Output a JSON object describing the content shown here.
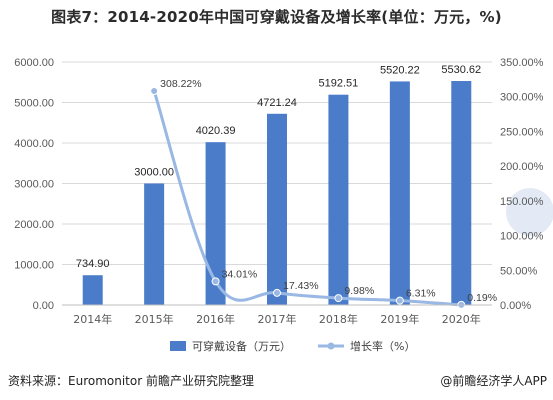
{
  "title": "图表7：2014-2020年中国可穿戴设备及增长率(单位：万元，%)",
  "footer": {
    "source": "资料来源：Euromonitor 前瞻产业研究院整理",
    "brand": "@前瞻经济学人APP"
  },
  "colors": {
    "bar": "#4a7cc9",
    "line": "#9ab8e4",
    "grid": "#d9d9d9",
    "axis_text": "#595959"
  },
  "chart_data": {
    "type": "bar",
    "categories": [
      "2014年",
      "2015年",
      "2016年",
      "2017年",
      "2018年",
      "2019年",
      "2020年"
    ],
    "series": [
      {
        "name": "可穿戴设备（万元）",
        "type": "bar",
        "axis": "left",
        "values": [
          734.9,
          3000.0,
          4020.39,
          4721.24,
          5192.51,
          5520.22,
          5530.62
        ],
        "labels": [
          "734.90",
          "3000.00",
          "4020.39",
          "4721.24",
          "5192.51",
          "5520.22",
          "5530.62"
        ]
      },
      {
        "name": "增长率（%）",
        "type": "line",
        "axis": "right",
        "values": [
          null,
          308.22,
          34.01,
          17.43,
          9.98,
          6.31,
          0.19
        ],
        "labels": [
          "",
          "308.22%",
          "34.01%",
          "17.43%",
          "9.98%",
          "6.31%",
          "0.19%"
        ]
      }
    ],
    "y_left": {
      "lim": [
        0,
        6000
      ],
      "ticks": [
        0,
        1000,
        2000,
        3000,
        4000,
        5000,
        6000
      ],
      "tick_labels": [
        "0.00",
        "1000.00",
        "2000.00",
        "3000.00",
        "4000.00",
        "5000.00",
        "6000.00"
      ]
    },
    "y_right": {
      "lim": [
        0,
        350
      ],
      "ticks": [
        0,
        50,
        100,
        150,
        200,
        250,
        300,
        350
      ],
      "tick_labels": [
        "0.00%",
        "50.00%",
        "100.00%",
        "150.00%",
        "200.00%",
        "250.00%",
        "300.00%",
        "350.00%"
      ]
    },
    "grid": true,
    "legend_position": "bottom"
  }
}
